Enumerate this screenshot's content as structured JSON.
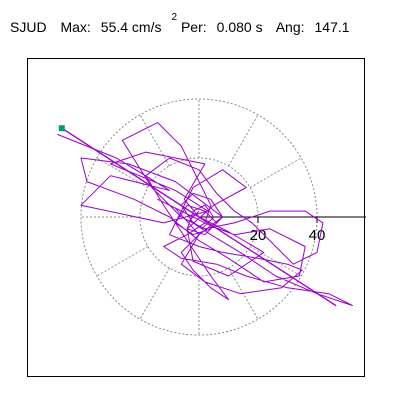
{
  "header": {
    "station": "SJUD",
    "max_label": "Max:",
    "max_value": "55.4 cm/s",
    "max_exp": "2",
    "per_label": "Per:",
    "per_value": "0.080 s",
    "ang_label": "Ang:",
    "ang_value": "147.1"
  },
  "chart_data": {
    "type": "line",
    "title": "",
    "ring_radii": [
      20,
      40
    ],
    "tick_labels": [
      "20",
      "40"
    ],
    "spoke_angles_deg": [
      0,
      30,
      60,
      90,
      120,
      150,
      180,
      210,
      240,
      270,
      300,
      330
    ],
    "max_amplitude": 55.4,
    "max_period_s": 0.08,
    "max_angle_deg": 147.1,
    "marker_color": "#009977",
    "trace_color": "#9900cc",
    "grid_style": "dotted",
    "trace_points": [
      [
        -48,
        28
      ],
      [
        -28,
        20
      ],
      [
        -10,
        9
      ],
      [
        -30,
        14
      ],
      [
        -40,
        4
      ],
      [
        -12,
        -2
      ],
      [
        3,
        2
      ],
      [
        -8,
        9
      ],
      [
        -30,
        18
      ],
      [
        -18,
        22
      ],
      [
        2,
        18
      ],
      [
        -5,
        6
      ],
      [
        0,
        0
      ],
      [
        10,
        -5
      ],
      [
        22,
        -12
      ],
      [
        10,
        -20
      ],
      [
        -2,
        -15
      ],
      [
        -4,
        -4
      ],
      [
        5,
        4
      ],
      [
        16,
        10
      ],
      [
        8,
        16
      ],
      [
        -2,
        10
      ],
      [
        -6,
        2
      ],
      [
        -10,
        -6
      ],
      [
        0,
        -10
      ],
      [
        8,
        -12
      ],
      [
        20,
        -14
      ],
      [
        30,
        -16
      ],
      [
        35,
        -18
      ],
      [
        28,
        -24
      ],
      [
        14,
        -26
      ],
      [
        2,
        -22
      ],
      [
        -6,
        -16
      ],
      [
        0,
        -6
      ],
      [
        -8,
        3
      ],
      [
        -14,
        6
      ],
      [
        -6,
        2
      ],
      [
        4,
        -3
      ],
      [
        12,
        -6
      ],
      [
        24,
        -4
      ],
      [
        36,
        -10
      ],
      [
        34,
        -20
      ],
      [
        22,
        -22
      ],
      [
        10,
        -14
      ],
      [
        0,
        -8
      ],
      [
        -10,
        0
      ],
      [
        -22,
        6
      ],
      [
        -38,
        12
      ],
      [
        -40,
        20
      ],
      [
        -24,
        18
      ],
      [
        -8,
        12
      ],
      [
        0,
        6
      ],
      [
        8,
        0
      ],
      [
        0,
        -6
      ],
      [
        -6,
        -12
      ],
      [
        -2,
        -18
      ],
      [
        4,
        -24
      ],
      [
        10,
        -28
      ],
      [
        4,
        -20
      ],
      [
        -4,
        -8
      ],
      [
        -12,
        4
      ],
      [
        -18,
        14
      ],
      [
        -10,
        20
      ],
      [
        0,
        16
      ],
      [
        6,
        8
      ],
      [
        12,
        2
      ],
      [
        18,
        -2
      ],
      [
        26,
        -10
      ],
      [
        32,
        -16
      ],
      [
        40,
        -12
      ],
      [
        42,
        -2
      ],
      [
        36,
        2
      ],
      [
        24,
        2
      ],
      [
        12,
        -2
      ],
      [
        2,
        -4
      ],
      [
        -6,
        0
      ],
      [
        -16,
        10
      ],
      [
        -26,
        26
      ],
      [
        -14,
        32
      ],
      [
        -6,
        24
      ],
      [
        0,
        12
      ],
      [
        4,
        4
      ],
      [
        2,
        -2
      ],
      [
        -4,
        -6
      ],
      [
        -12,
        -10
      ],
      [
        -6,
        -14
      ],
      [
        6,
        -16
      ],
      [
        16,
        -20
      ],
      [
        30,
        -24
      ],
      [
        44,
        -26
      ],
      [
        52,
        -30
      ],
      [
        40,
        -26
      ],
      [
        26,
        -20
      ],
      [
        14,
        -12
      ],
      [
        4,
        -6
      ],
      [
        -2,
        -2
      ],
      [
        -6,
        4
      ],
      [
        -2,
        8
      ],
      [
        4,
        6
      ],
      [
        8,
        0
      ],
      [
        4,
        -4
      ],
      [
        -2,
        -6
      ],
      [
        -8,
        -2
      ],
      [
        -4,
        4
      ],
      [
        2,
        2
      ],
      [
        6,
        -2
      ],
      [
        2,
        -6
      ],
      [
        -4,
        -4
      ],
      [
        -2,
        2
      ],
      [
        2,
        4
      ],
      [
        5,
        0
      ],
      [
        1,
        -4
      ],
      [
        -3,
        -1
      ],
      [
        0,
        2
      ]
    ],
    "max_point": [
      -48,
      28
    ]
  }
}
